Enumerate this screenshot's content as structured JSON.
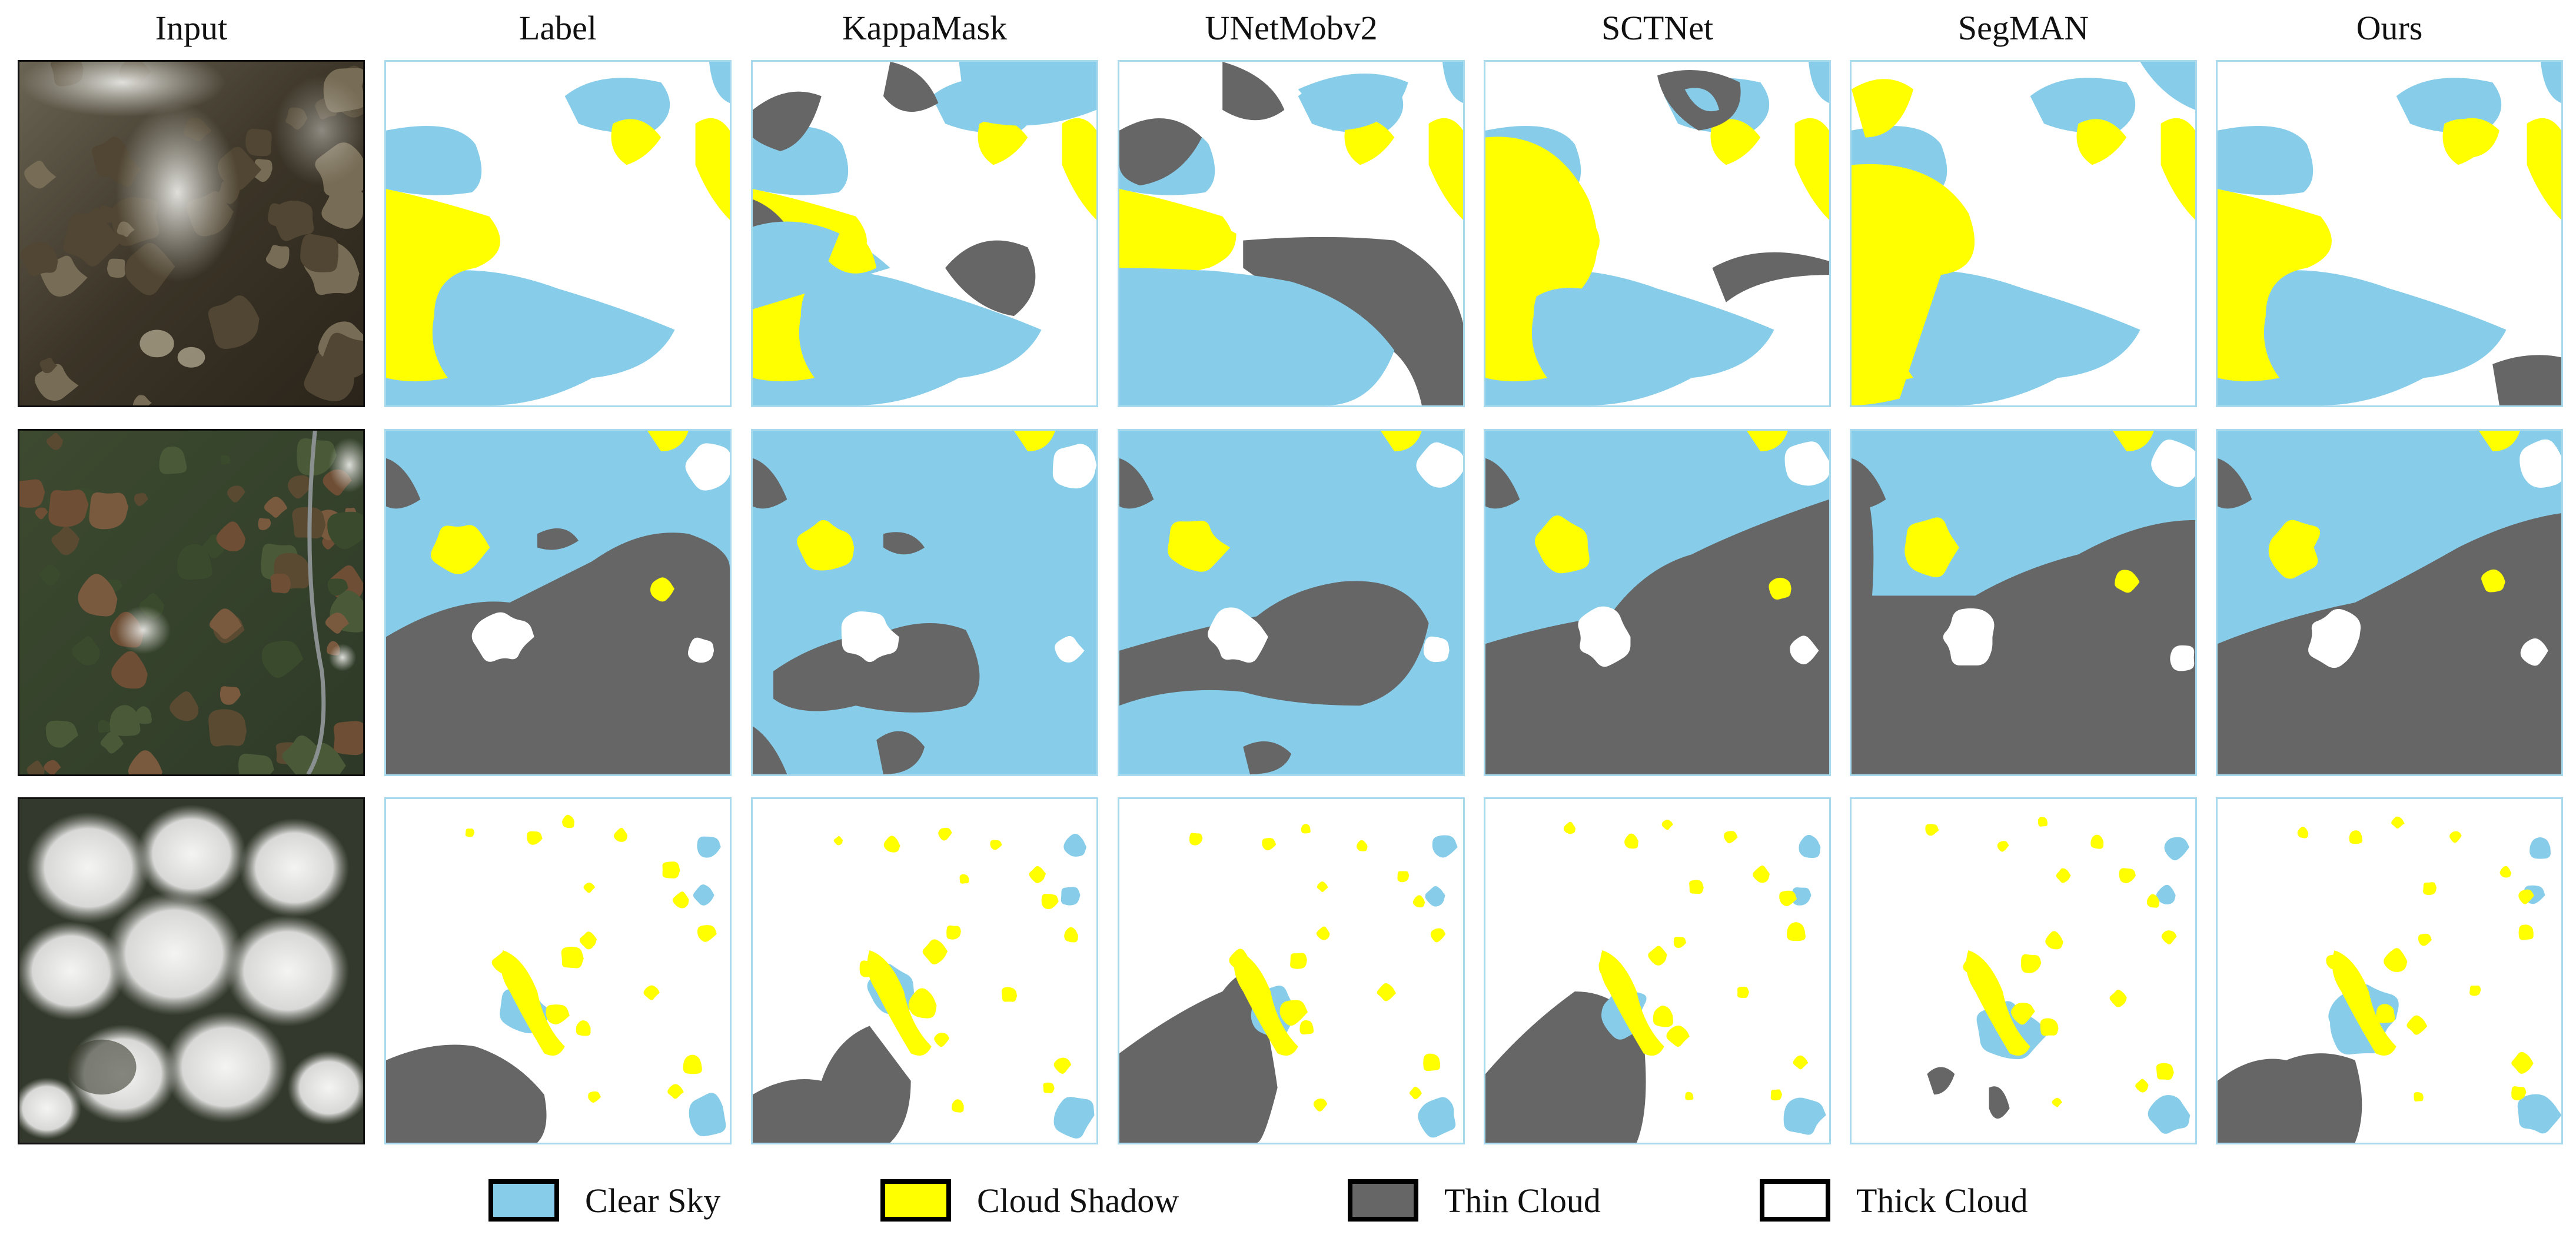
{
  "columns": [
    "Input",
    "Label",
    "KappaMask",
    "UNetMobv2",
    "SCTNet",
    "SegMAN",
    "Ours"
  ],
  "rows": 3,
  "legend": [
    {
      "label": "Clear Sky",
      "color": "#87CDEA"
    },
    {
      "label": "Cloud Shadow",
      "color": "#FFFF00"
    },
    {
      "label": "Thin Cloud",
      "color": "#666666"
    },
    {
      "label": "Thick Cloud",
      "color": "#FFFFFF"
    }
  ],
  "colors": {
    "clear_sky": "#87CDEA",
    "cloud_shadow": "#FFFF00",
    "thin_cloud": "#666666",
    "thick_cloud": "#FFFFFF",
    "panel_border": "#A9D9EC"
  }
}
